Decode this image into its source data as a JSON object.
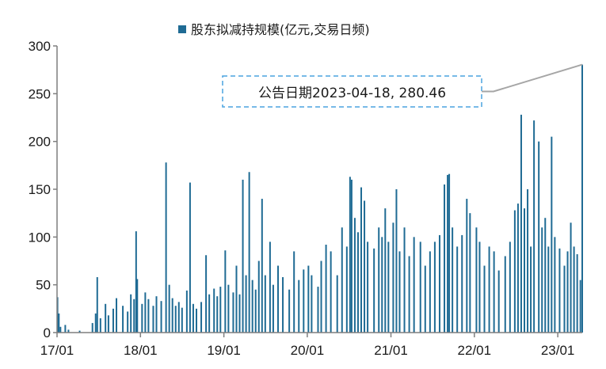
{
  "chart_data": {
    "type": "bar",
    "title": "",
    "xlabel": "",
    "ylabel": "",
    "ylim": [
      0,
      300
    ],
    "yticks": [
      0,
      50,
      100,
      150,
      200,
      250,
      300
    ],
    "x_range": [
      "2017-01-01",
      "2023-04-18"
    ],
    "x_tick_labels": [
      "17/01",
      "18/01",
      "19/01",
      "20/01",
      "21/01",
      "22/01",
      "23/01"
    ],
    "x_tick_dates": [
      "2017-01-01",
      "2018-01-01",
      "2019-01-01",
      "2020-01-01",
      "2021-01-01",
      "2022-01-01",
      "2023-01-01"
    ],
    "grid": false,
    "legend": {
      "position": "top-center",
      "entries": [
        "股东拟减持规模(亿元,交易日频)"
      ]
    },
    "series": [
      {
        "name": "股东拟减持规模(亿元,交易日频)",
        "color": "#1f6b94",
        "data": [
          [
            "2017-01-03",
            37
          ],
          [
            "2017-01-09",
            20
          ],
          [
            "2017-01-16",
            6
          ],
          [
            "2017-02-06",
            8
          ],
          [
            "2017-02-20",
            3
          ],
          [
            "2017-04-10",
            2
          ],
          [
            "2017-06-05",
            10
          ],
          [
            "2017-06-19",
            20
          ],
          [
            "2017-06-26",
            58
          ],
          [
            "2017-07-10",
            15
          ],
          [
            "2017-08-01",
            30
          ],
          [
            "2017-08-14",
            18
          ],
          [
            "2017-09-04",
            25
          ],
          [
            "2017-09-18",
            36
          ],
          [
            "2017-10-16",
            28
          ],
          [
            "2017-11-06",
            22
          ],
          [
            "2017-11-20",
            40
          ],
          [
            "2017-12-04",
            35
          ],
          [
            "2017-12-13",
            106
          ],
          [
            "2017-12-18",
            56
          ],
          [
            "2018-01-08",
            30
          ],
          [
            "2018-01-22",
            42
          ],
          [
            "2018-02-05",
            35
          ],
          [
            "2018-02-26",
            28
          ],
          [
            "2018-03-12",
            38
          ],
          [
            "2018-04-02",
            33
          ],
          [
            "2018-04-23",
            178
          ],
          [
            "2018-05-07",
            50
          ],
          [
            "2018-05-21",
            36
          ],
          [
            "2018-06-04",
            28
          ],
          [
            "2018-06-18",
            32
          ],
          [
            "2018-07-02",
            26
          ],
          [
            "2018-07-23",
            44
          ],
          [
            "2018-08-06",
            157
          ],
          [
            "2018-08-20",
            30
          ],
          [
            "2018-09-03",
            25
          ],
          [
            "2018-09-24",
            32
          ],
          [
            "2018-10-15",
            81
          ],
          [
            "2018-10-29",
            40
          ],
          [
            "2018-11-19",
            46
          ],
          [
            "2018-12-03",
            38
          ],
          [
            "2018-12-17",
            48
          ],
          [
            "2019-01-07",
            86
          ],
          [
            "2019-01-21",
            50
          ],
          [
            "2019-02-11",
            42
          ],
          [
            "2019-02-25",
            70
          ],
          [
            "2019-03-11",
            40
          ],
          [
            "2019-03-25",
            160
          ],
          [
            "2019-04-08",
            60
          ],
          [
            "2019-04-22",
            168
          ],
          [
            "2019-05-06",
            55
          ],
          [
            "2019-05-20",
            45
          ],
          [
            "2019-06-03",
            75
          ],
          [
            "2019-06-17",
            140
          ],
          [
            "2019-07-01",
            60
          ],
          [
            "2019-07-22",
            95
          ],
          [
            "2019-08-05",
            50
          ],
          [
            "2019-08-26",
            70
          ],
          [
            "2019-09-16",
            58
          ],
          [
            "2019-10-14",
            45
          ],
          [
            "2019-11-04",
            85
          ],
          [
            "2019-11-25",
            55
          ],
          [
            "2019-12-16",
            66
          ],
          [
            "2020-01-06",
            70
          ],
          [
            "2020-01-20",
            60
          ],
          [
            "2020-02-17",
            48
          ],
          [
            "2020-03-02",
            75
          ],
          [
            "2020-03-23",
            92
          ],
          [
            "2020-04-13",
            85
          ],
          [
            "2020-05-11",
            60
          ],
          [
            "2020-06-01",
            110
          ],
          [
            "2020-06-22",
            90
          ],
          [
            "2020-07-06",
            163
          ],
          [
            "2020-07-13",
            160
          ],
          [
            "2020-07-27",
            120
          ],
          [
            "2020-08-10",
            105
          ],
          [
            "2020-08-24",
            152
          ],
          [
            "2020-09-07",
            138
          ],
          [
            "2020-09-21",
            95
          ],
          [
            "2020-10-19",
            88
          ],
          [
            "2020-11-09",
            110
          ],
          [
            "2020-11-23",
            100
          ],
          [
            "2020-12-07",
            130
          ],
          [
            "2020-12-21",
            95
          ],
          [
            "2021-01-11",
            115
          ],
          [
            "2021-01-25",
            150
          ],
          [
            "2021-02-08",
            85
          ],
          [
            "2021-03-01",
            110
          ],
          [
            "2021-03-22",
            80
          ],
          [
            "2021-04-12",
            100
          ],
          [
            "2021-05-10",
            95
          ],
          [
            "2021-05-31",
            70
          ],
          [
            "2021-06-21",
            85
          ],
          [
            "2021-07-12",
            95
          ],
          [
            "2021-08-02",
            102
          ],
          [
            "2021-08-23",
            155
          ],
          [
            "2021-09-06",
            165
          ],
          [
            "2021-09-13",
            166
          ],
          [
            "2021-09-27",
            110
          ],
          [
            "2021-10-18",
            90
          ],
          [
            "2021-11-08",
            102
          ],
          [
            "2021-11-29",
            140
          ],
          [
            "2021-12-13",
            125
          ],
          [
            "2022-01-10",
            110
          ],
          [
            "2022-01-24",
            95
          ],
          [
            "2022-02-14",
            70
          ],
          [
            "2022-03-07",
            90
          ],
          [
            "2022-03-28",
            85
          ],
          [
            "2022-04-18",
            65
          ],
          [
            "2022-05-16",
            80
          ],
          [
            "2022-06-06",
            95
          ],
          [
            "2022-06-27",
            128
          ],
          [
            "2022-07-11",
            135
          ],
          [
            "2022-07-25",
            228
          ],
          [
            "2022-08-08",
            130
          ],
          [
            "2022-08-22",
            150
          ],
          [
            "2022-09-05",
            90
          ],
          [
            "2022-09-19",
            222
          ],
          [
            "2022-10-10",
            200
          ],
          [
            "2022-10-24",
            110
          ],
          [
            "2022-11-07",
            120
          ],
          [
            "2022-11-21",
            90
          ],
          [
            "2022-12-05",
            205
          ],
          [
            "2022-12-19",
            100
          ],
          [
            "2023-01-09",
            88
          ],
          [
            "2023-01-30",
            70
          ],
          [
            "2023-02-13",
            85
          ],
          [
            "2023-02-27",
            115
          ],
          [
            "2023-03-13",
            90
          ],
          [
            "2023-03-27",
            82
          ],
          [
            "2023-04-10",
            55
          ],
          [
            "2023-04-18",
            280.46
          ]
        ]
      }
    ],
    "annotations": [
      {
        "text": "公告日期2023-04-18, 280.46",
        "target": [
          "2023-04-18",
          280.46
        ],
        "box": "dashed"
      }
    ]
  }
}
